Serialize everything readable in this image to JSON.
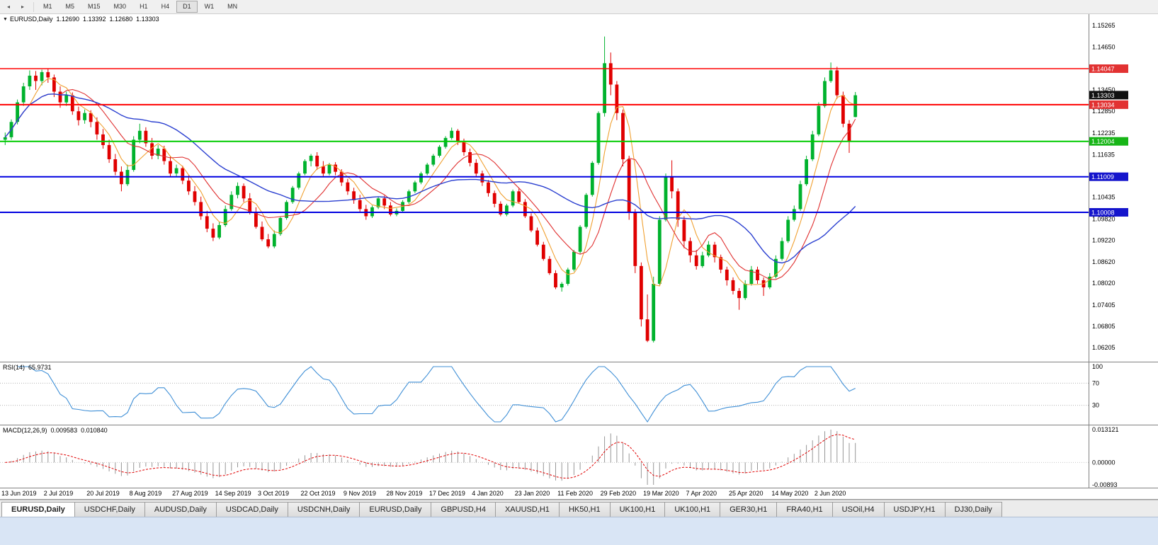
{
  "toolbar": {
    "icons": [
      {
        "name": "auto-scroll-icon",
        "glyph": "◂"
      },
      {
        "name": "chart-shift-icon",
        "glyph": "▸"
      }
    ],
    "timeframes": [
      "M1",
      "M5",
      "M15",
      "M30",
      "H1",
      "H4",
      "D1",
      "W1",
      "MN"
    ],
    "active_timeframe": "D1"
  },
  "main_chart": {
    "header": {
      "collapse_glyph": "▼",
      "symbol": "EURUSD,Daily",
      "open": "1.12690",
      "high": "1.13392",
      "low": "1.12680",
      "close": "1.13303"
    },
    "axis_ticks": [
      "1.15265",
      "1.14650",
      "1.13450",
      "1.12850",
      "1.12235",
      "1.11635",
      "1.10435",
      "1.09820",
      "1.09220",
      "1.08620",
      "1.08020",
      "1.07405",
      "1.06805",
      "1.06205"
    ],
    "price_badges": [
      {
        "label": "1.14047",
        "price": 1.14047,
        "color": "#e23232",
        "kind": "resistance-line"
      },
      {
        "label": "1.13303",
        "price": 1.13303,
        "color": "#111111",
        "kind": "current-price"
      },
      {
        "label": "1.13034",
        "price": 1.13034,
        "color": "#e23232",
        "kind": "resistance-line"
      },
      {
        "label": "1.12004",
        "price": 1.12004,
        "color": "#17b517",
        "kind": "support-line"
      },
      {
        "label": "1.11009",
        "price": 1.11009,
        "color": "#1515cc",
        "kind": "support-line"
      },
      {
        "label": "1.10008",
        "price": 1.10008,
        "color": "#1515cc",
        "kind": "support-line"
      }
    ],
    "hlines": [
      {
        "price": 1.14047,
        "color": "#ff0000",
        "width": 1.4
      },
      {
        "price": 1.13034,
        "color": "#ff0000",
        "width": 2
      },
      {
        "price": 1.12004,
        "color": "#00cc00",
        "width": 2
      },
      {
        "price": 1.11009,
        "color": "#0000e0",
        "width": 2
      },
      {
        "price": 1.10008,
        "color": "#0000e0",
        "width": 2
      }
    ],
    "colors": {
      "up": "#00b22d",
      "down": "#e00000",
      "ma_fast": "#f0a030",
      "ma_mid": "#e03030",
      "ma_slow": "#2a3fd0"
    },
    "ma_periods": {
      "fast": 5,
      "mid": 10,
      "slow": 25
    },
    "price_axis": {
      "max": 1.1542,
      "min": 1.0599
    }
  },
  "chart_data": {
    "type": "candlestick",
    "title": "EURUSD,Daily",
    "symbol": "EURUSD",
    "timeframe": "Daily",
    "ylim": [
      1.0599,
      1.1542
    ],
    "x_label_step": 7,
    "x_labels": [
      "13 Jun 2019",
      "2 Jul 2019",
      "20 Jul 2019",
      "8 Aug 2019",
      "27 Aug 2019",
      "14 Sep 2019",
      "3 Oct 2019",
      "22 Oct 2019",
      "9 Nov 2019",
      "28 Nov 2019",
      "17 Dec 2019",
      "4 Jan 2020",
      "23 Jan 2020",
      "11 Feb 2020",
      "29 Feb 2020",
      "19 Mar 2020",
      "7 Apr 2020",
      "25 Apr 2020",
      "14 May 2020",
      "2 Jun 2020"
    ],
    "current": {
      "open": 1.1269,
      "high": 1.13392,
      "low": 1.1268,
      "close": 1.13303
    },
    "ohlc": [
      [
        1.1205,
        1.1225,
        1.119,
        1.1212
      ],
      [
        1.1212,
        1.1262,
        1.1205,
        1.1255
      ],
      [
        1.1255,
        1.1318,
        1.1248,
        1.131
      ],
      [
        1.131,
        1.1365,
        1.13,
        1.1355
      ],
      [
        1.1355,
        1.14,
        1.1345,
        1.1385
      ],
      [
        1.1385,
        1.1398,
        1.1345,
        1.137
      ],
      [
        1.137,
        1.1402,
        1.1358,
        1.1395
      ],
      [
        1.1395,
        1.1404,
        1.1365,
        1.138
      ],
      [
        1.138,
        1.1388,
        1.1325,
        1.134
      ],
      [
        1.134,
        1.1355,
        1.1295,
        1.131
      ],
      [
        1.131,
        1.134,
        1.13,
        1.133
      ],
      [
        1.133,
        1.1338,
        1.1275,
        1.1285
      ],
      [
        1.1285,
        1.1298,
        1.1245,
        1.126
      ],
      [
        1.126,
        1.129,
        1.125,
        1.128
      ],
      [
        1.128,
        1.1288,
        1.124,
        1.1255
      ],
      [
        1.1255,
        1.1268,
        1.1205,
        1.122
      ],
      [
        1.122,
        1.1235,
        1.118,
        1.119
      ],
      [
        1.119,
        1.1205,
        1.114,
        1.115
      ],
      [
        1.115,
        1.1165,
        1.1105,
        1.1115
      ],
      [
        1.1115,
        1.113,
        1.106,
        1.108
      ],
      [
        1.108,
        1.1135,
        1.1075,
        1.112
      ],
      [
        1.112,
        1.1215,
        1.1115,
        1.1205
      ],
      [
        1.1205,
        1.125,
        1.1195,
        1.123
      ],
      [
        1.123,
        1.124,
        1.1185,
        1.1195
      ],
      [
        1.1195,
        1.121,
        1.115,
        1.116
      ],
      [
        1.116,
        1.119,
        1.115,
        1.118
      ],
      [
        1.118,
        1.1188,
        1.1135,
        1.1145
      ],
      [
        1.1145,
        1.116,
        1.11,
        1.111
      ],
      [
        1.111,
        1.1135,
        1.11,
        1.1125
      ],
      [
        1.1125,
        1.1132,
        1.108,
        1.109
      ],
      [
        1.109,
        1.1105,
        1.105,
        1.106
      ],
      [
        1.106,
        1.1075,
        1.102,
        1.103
      ],
      [
        1.103,
        1.1045,
        1.098,
        1.099
      ],
      [
        1.099,
        1.1005,
        1.0945,
        1.0955
      ],
      [
        1.0955,
        1.097,
        1.092,
        1.093
      ],
      [
        1.093,
        1.0975,
        1.0925,
        1.0965
      ],
      [
        1.0965,
        1.102,
        1.096,
        1.101
      ],
      [
        1.101,
        1.106,
        1.1005,
        1.105
      ],
      [
        1.105,
        1.1085,
        1.104,
        1.1075
      ],
      [
        1.1075,
        1.1082,
        1.103,
        1.104
      ],
      [
        1.104,
        1.1055,
        1.0995,
        1.1
      ],
      [
        1.1,
        1.1015,
        1.0955,
        1.096
      ],
      [
        1.096,
        1.0975,
        1.092,
        1.0925
      ],
      [
        1.0925,
        1.094,
        1.09,
        1.0905
      ],
      [
        1.0905,
        1.095,
        1.09,
        1.094
      ],
      [
        1.094,
        1.099,
        1.0935,
        1.0985
      ],
      [
        1.0985,
        1.1035,
        1.098,
        1.103
      ],
      [
        1.103,
        1.1075,
        1.1025,
        1.107
      ],
      [
        1.107,
        1.1115,
        1.1065,
        1.111
      ],
      [
        1.111,
        1.115,
        1.1105,
        1.1145
      ],
      [
        1.1145,
        1.1165,
        1.113,
        1.116
      ],
      [
        1.116,
        1.117,
        1.112,
        1.113
      ],
      [
        1.113,
        1.1145,
        1.11,
        1.111
      ],
      [
        1.111,
        1.114,
        1.1105,
        1.1135
      ],
      [
        1.1135,
        1.1142,
        1.1105,
        1.1115
      ],
      [
        1.1115,
        1.1122,
        1.1075,
        1.1085
      ],
      [
        1.1085,
        1.1095,
        1.105,
        1.106
      ],
      [
        1.106,
        1.107,
        1.1025,
        1.1035
      ],
      [
        1.1035,
        1.105,
        1.1,
        1.101
      ],
      [
        1.101,
        1.1022,
        1.098,
        1.099
      ],
      [
        1.099,
        1.102,
        1.0985,
        1.1015
      ],
      [
        1.1015,
        1.1045,
        1.101,
        1.104
      ],
      [
        1.104,
        1.1048,
        1.101,
        1.102
      ],
      [
        1.102,
        1.103,
        1.099,
        1.0995
      ],
      [
        1.0995,
        1.1012,
        1.099,
        1.1005
      ],
      [
        1.1005,
        1.1035,
        1.1,
        1.103
      ],
      [
        1.103,
        1.1065,
        1.1025,
        1.106
      ],
      [
        1.106,
        1.109,
        1.1055,
        1.1085
      ],
      [
        1.1085,
        1.1115,
        1.108,
        1.111
      ],
      [
        1.111,
        1.114,
        1.1105,
        1.1135
      ],
      [
        1.1135,
        1.1165,
        1.113,
        1.116
      ],
      [
        1.116,
        1.119,
        1.1155,
        1.1185
      ],
      [
        1.1185,
        1.1215,
        1.118,
        1.121
      ],
      [
        1.121,
        1.1239,
        1.1205,
        1.123
      ],
      [
        1.123,
        1.1235,
        1.119,
        1.12
      ],
      [
        1.12,
        1.1208,
        1.116,
        1.117
      ],
      [
        1.117,
        1.118,
        1.113,
        1.114
      ],
      [
        1.114,
        1.115,
        1.11,
        1.111
      ],
      [
        1.111,
        1.1118,
        1.1075,
        1.1085
      ],
      [
        1.1085,
        1.1092,
        1.1045,
        1.1055
      ],
      [
        1.1055,
        1.1062,
        1.1015,
        1.1025
      ],
      [
        1.1025,
        1.1032,
        1.099,
        1.0995
      ],
      [
        1.0995,
        1.1025,
        1.099,
        1.102
      ],
      [
        1.102,
        1.1065,
        1.1015,
        1.106
      ],
      [
        1.106,
        1.1068,
        1.1025,
        1.103
      ],
      [
        1.103,
        1.1038,
        1.0985,
        1.099
      ],
      [
        1.099,
        1.0998,
        1.0945,
        1.095
      ],
      [
        1.095,
        1.0958,
        1.0905,
        1.091
      ],
      [
        1.091,
        1.0918,
        1.0865,
        1.087
      ],
      [
        1.087,
        1.0878,
        1.0825,
        1.083
      ],
      [
        1.083,
        1.0838,
        1.0785,
        1.079
      ],
      [
        1.079,
        1.0805,
        1.0778,
        1.08
      ],
      [
        1.08,
        1.0845,
        1.0795,
        1.084
      ],
      [
        1.084,
        1.0895,
        1.0835,
        1.089
      ],
      [
        1.089,
        1.0965,
        1.0885,
        1.096
      ],
      [
        1.096,
        1.1055,
        1.0955,
        1.105
      ],
      [
        1.105,
        1.1145,
        1.1045,
        1.114
      ],
      [
        1.114,
        1.1285,
        1.1135,
        1.128
      ],
      [
        1.128,
        1.1495,
        1.127,
        1.142
      ],
      [
        1.142,
        1.145,
        1.133,
        1.136
      ],
      [
        1.136,
        1.137,
        1.126,
        1.128
      ],
      [
        1.128,
        1.129,
        1.113,
        1.115
      ],
      [
        1.115,
        1.116,
        1.098,
        1.1
      ],
      [
        1.1,
        1.101,
        1.083,
        1.085
      ],
      [
        1.085,
        1.086,
        1.068,
        1.07
      ],
      [
        1.07,
        1.077,
        1.0636,
        1.064
      ],
      [
        1.064,
        1.082,
        1.0635,
        1.08
      ],
      [
        1.08,
        1.099,
        1.0795,
        1.098
      ],
      [
        1.098,
        1.111,
        1.0975,
        1.11
      ],
      [
        1.11,
        1.1147,
        1.104,
        1.106
      ],
      [
        1.106,
        1.1068,
        1.096,
        1.098
      ],
      [
        1.098,
        1.099,
        1.09,
        1.092
      ],
      [
        1.092,
        1.093,
        1.086,
        1.088
      ],
      [
        1.088,
        1.0895,
        1.084,
        1.085
      ],
      [
        1.085,
        1.089,
        1.0845,
        1.088
      ],
      [
        1.088,
        1.092,
        1.0875,
        1.091
      ],
      [
        1.091,
        1.0918,
        1.086,
        1.0875
      ],
      [
        1.0875,
        1.0882,
        1.083,
        1.084
      ],
      [
        1.084,
        1.0848,
        1.0795,
        1.081
      ],
      [
        1.081,
        1.0818,
        1.077,
        1.078
      ],
      [
        1.078,
        1.0788,
        1.0727,
        1.076
      ],
      [
        1.076,
        1.081,
        1.0755,
        1.08
      ],
      [
        1.08,
        1.085,
        1.0795,
        1.084
      ],
      [
        1.084,
        1.0848,
        1.08,
        1.081
      ],
      [
        1.081,
        1.0818,
        1.0766,
        1.079
      ],
      [
        1.079,
        1.083,
        1.0785,
        1.082
      ],
      [
        1.082,
        1.088,
        1.0815,
        1.087
      ],
      [
        1.087,
        1.093,
        1.0865,
        1.092
      ],
      [
        1.092,
        1.099,
        1.0915,
        1.098
      ],
      [
        1.098,
        1.102,
        1.0975,
        1.101
      ],
      [
        1.101,
        1.109,
        1.1005,
        1.108
      ],
      [
        1.108,
        1.116,
        1.1075,
        1.115
      ],
      [
        1.115,
        1.123,
        1.1145,
        1.122
      ],
      [
        1.122,
        1.131,
        1.1215,
        1.13
      ],
      [
        1.13,
        1.138,
        1.1295,
        1.137
      ],
      [
        1.137,
        1.1422,
        1.1365,
        1.14
      ],
      [
        1.14,
        1.141,
        1.132,
        1.133
      ],
      [
        1.133,
        1.134,
        1.124,
        1.125
      ],
      [
        1.125,
        1.126,
        1.1168,
        1.12
      ],
      [
        1.1269,
        1.1339,
        1.1268,
        1.133
      ]
    ]
  },
  "rsi": {
    "label": "RSI(14)",
    "value": "65.9731",
    "calc_period": 7,
    "levels": [
      "100",
      "70",
      "30"
    ],
    "level_values": [
      100,
      70,
      30
    ],
    "color": "#3f8fd6"
  },
  "macd": {
    "label": "MACD(12,26,9)",
    "value_main": "0.009583",
    "value_signal": "0.010840",
    "axis_labels": [
      "0.013121",
      "0.00000",
      "-0.00893"
    ],
    "axis_values": [
      0.013121,
      0,
      -0.00893
    ],
    "ymax": 0.013121,
    "ymin": -0.00893,
    "calc": {
      "fast": 6,
      "slow": 13,
      "signal": 5
    },
    "hist_color": "#979797",
    "signal_color": "#e00000"
  },
  "tabs": {
    "items": [
      "EURUSD,Daily",
      "USDCHF,Daily",
      "AUDUSD,Daily",
      "USDCAD,Daily",
      "USDCNH,Daily",
      "EURUSD,Daily",
      "GBPUSD,H4",
      "XAUUSD,H1",
      "HK50,H1",
      "UK100,H1",
      "UK100,H1",
      "GER30,H1",
      "FRA40,H1",
      "USOil,H4",
      "USDJPY,H1",
      "DJ30,Daily"
    ],
    "active_index": 0
  }
}
